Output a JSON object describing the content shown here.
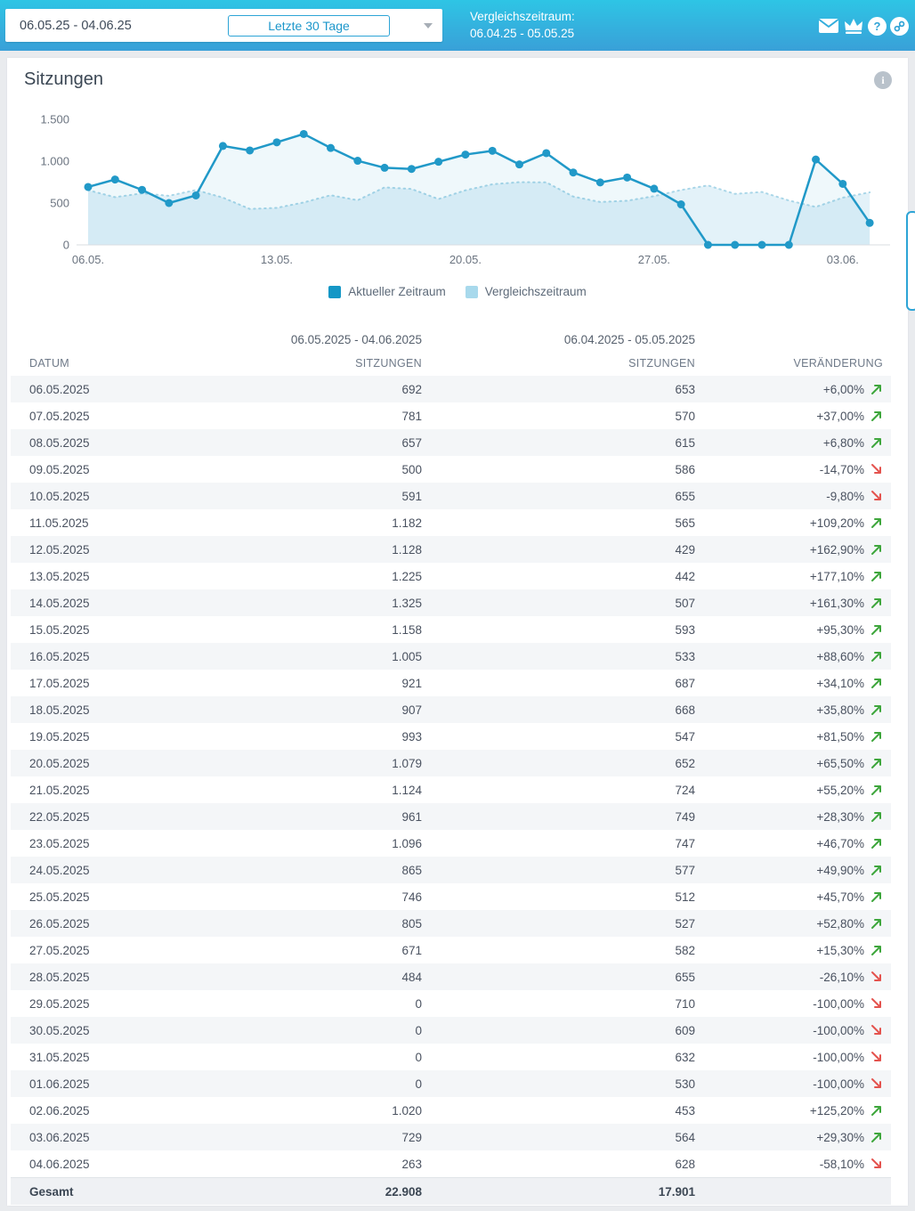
{
  "header": {
    "date_range": "06.05.25 - 04.06.25",
    "range_preset": "Letzte 30 Tage",
    "comparison_label": "Vergleichszeitraum:",
    "comparison_range": "06.04.25 - 05.05.25",
    "help_glyph": "?",
    "icon_names": [
      "mail-icon",
      "crown-icon",
      "help-icon",
      "link-icon"
    ]
  },
  "panel": {
    "title": "Sitzungen",
    "info_icon_glyph": "i"
  },
  "chart_data": {
    "type": "line",
    "title": "Sitzungen",
    "categories": [
      "06.05.2025",
      "07.05.2025",
      "08.05.2025",
      "09.05.2025",
      "10.05.2025",
      "11.05.2025",
      "12.05.2025",
      "13.05.2025",
      "14.05.2025",
      "15.05.2025",
      "16.05.2025",
      "17.05.2025",
      "18.05.2025",
      "19.05.2025",
      "20.05.2025",
      "21.05.2025",
      "22.05.2025",
      "23.05.2025",
      "24.05.2025",
      "25.05.2025",
      "26.05.2025",
      "27.05.2025",
      "28.05.2025",
      "29.05.2025",
      "30.05.2025",
      "31.05.2025",
      "01.06.2025",
      "02.06.2025",
      "03.06.2025",
      "04.06.2025"
    ],
    "series": [
      {
        "name": "Aktueller Zeitraum",
        "style": "solid",
        "color": "#2199c8",
        "values": [
          692,
          781,
          657,
          500,
          591,
          1182,
          1128,
          1225,
          1325,
          1158,
          1005,
          921,
          907,
          993,
          1079,
          1124,
          961,
          1096,
          865,
          746,
          805,
          671,
          484,
          0,
          0,
          0,
          0,
          1020,
          729,
          263
        ]
      },
      {
        "name": "Vergleichszeitraum",
        "style": "dotted",
        "color": "#a9d6e8",
        "values": [
          653,
          570,
          615,
          586,
          655,
          565,
          429,
          442,
          507,
          593,
          533,
          687,
          668,
          547,
          652,
          724,
          749,
          747,
          577,
          512,
          527,
          582,
          655,
          710,
          609,
          632,
          530,
          453,
          564,
          628
        ]
      }
    ],
    "ylim": [
      0,
      1500
    ],
    "y_ticks": [
      {
        "value": 0,
        "label": "0"
      },
      {
        "value": 500,
        "label": "500"
      },
      {
        "value": 1000,
        "label": "1.000"
      },
      {
        "value": 1500,
        "label": "1.500"
      }
    ],
    "x_ticks": [
      {
        "index": 0,
        "label": "06.05."
      },
      {
        "index": 7,
        "label": "13.05."
      },
      {
        "index": 14,
        "label": "20.05."
      },
      {
        "index": 21,
        "label": "27.05."
      },
      {
        "index": 28,
        "label": "03.06."
      }
    ],
    "grid": false,
    "legend_position": "bottom",
    "legend": [
      {
        "label": "Aktueller Zeitraum",
        "color": "#1597c6"
      },
      {
        "label": "Vergleichszeitraum",
        "color": "#a8d9ec"
      }
    ]
  },
  "table": {
    "period_headers": [
      "06.05.2025 - 04.06.2025",
      "06.04.2025 - 05.05.2025"
    ],
    "columns": [
      "DATUM",
      "SITZUNGEN",
      "SITZUNGEN",
      "VERÄNDERUNG"
    ],
    "rows": [
      {
        "date": "06.05.2025",
        "current": "692",
        "comparison": "653",
        "change": "+6,00%",
        "trend": "up"
      },
      {
        "date": "07.05.2025",
        "current": "781",
        "comparison": "570",
        "change": "+37,00%",
        "trend": "up"
      },
      {
        "date": "08.05.2025",
        "current": "657",
        "comparison": "615",
        "change": "+6,80%",
        "trend": "up"
      },
      {
        "date": "09.05.2025",
        "current": "500",
        "comparison": "586",
        "change": "-14,70%",
        "trend": "down"
      },
      {
        "date": "10.05.2025",
        "current": "591",
        "comparison": "655",
        "change": "-9,80%",
        "trend": "down"
      },
      {
        "date": "11.05.2025",
        "current": "1.182",
        "comparison": "565",
        "change": "+109,20%",
        "trend": "up"
      },
      {
        "date": "12.05.2025",
        "current": "1.128",
        "comparison": "429",
        "change": "+162,90%",
        "trend": "up"
      },
      {
        "date": "13.05.2025",
        "current": "1.225",
        "comparison": "442",
        "change": "+177,10%",
        "trend": "up"
      },
      {
        "date": "14.05.2025",
        "current": "1.325",
        "comparison": "507",
        "change": "+161,30%",
        "trend": "up"
      },
      {
        "date": "15.05.2025",
        "current": "1.158",
        "comparison": "593",
        "change": "+95,30%",
        "trend": "up"
      },
      {
        "date": "16.05.2025",
        "current": "1.005",
        "comparison": "533",
        "change": "+88,60%",
        "trend": "up"
      },
      {
        "date": "17.05.2025",
        "current": "921",
        "comparison": "687",
        "change": "+34,10%",
        "trend": "up"
      },
      {
        "date": "18.05.2025",
        "current": "907",
        "comparison": "668",
        "change": "+35,80%",
        "trend": "up"
      },
      {
        "date": "19.05.2025",
        "current": "993",
        "comparison": "547",
        "change": "+81,50%",
        "trend": "up"
      },
      {
        "date": "20.05.2025",
        "current": "1.079",
        "comparison": "652",
        "change": "+65,50%",
        "trend": "up"
      },
      {
        "date": "21.05.2025",
        "current": "1.124",
        "comparison": "724",
        "change": "+55,20%",
        "trend": "up"
      },
      {
        "date": "22.05.2025",
        "current": "961",
        "comparison": "749",
        "change": "+28,30%",
        "trend": "up"
      },
      {
        "date": "23.05.2025",
        "current": "1.096",
        "comparison": "747",
        "change": "+46,70%",
        "trend": "up"
      },
      {
        "date": "24.05.2025",
        "current": "865",
        "comparison": "577",
        "change": "+49,90%",
        "trend": "up"
      },
      {
        "date": "25.05.2025",
        "current": "746",
        "comparison": "512",
        "change": "+45,70%",
        "trend": "up"
      },
      {
        "date": "26.05.2025",
        "current": "805",
        "comparison": "527",
        "change": "+52,80%",
        "trend": "up"
      },
      {
        "date": "27.05.2025",
        "current": "671",
        "comparison": "582",
        "change": "+15,30%",
        "trend": "up"
      },
      {
        "date": "28.05.2025",
        "current": "484",
        "comparison": "655",
        "change": "-26,10%",
        "trend": "down"
      },
      {
        "date": "29.05.2025",
        "current": "0",
        "comparison": "710",
        "change": "-100,00%",
        "trend": "down"
      },
      {
        "date": "30.05.2025",
        "current": "0",
        "comparison": "609",
        "change": "-100,00%",
        "trend": "down"
      },
      {
        "date": "31.05.2025",
        "current": "0",
        "comparison": "632",
        "change": "-100,00%",
        "trend": "down"
      },
      {
        "date": "01.06.2025",
        "current": "0",
        "comparison": "530",
        "change": "-100,00%",
        "trend": "down"
      },
      {
        "date": "02.06.2025",
        "current": "1.020",
        "comparison": "453",
        "change": "+125,20%",
        "trend": "up"
      },
      {
        "date": "03.06.2025",
        "current": "729",
        "comparison": "564",
        "change": "+29,30%",
        "trend": "up"
      },
      {
        "date": "04.06.2025",
        "current": "263",
        "comparison": "628",
        "change": "-58,10%",
        "trend": "down"
      }
    ],
    "total": {
      "label": "Gesamt",
      "current": "22.908",
      "comparison": "17.901"
    }
  },
  "colors": {
    "topbar_gradient_top": "#2ec5e5",
    "topbar_gradient_bottom": "#39a0d8",
    "accent_blue": "#2199c8",
    "comparison_blue": "#a9d6e8",
    "positive_green": "#3ea63c",
    "negative_red": "#e4534e",
    "row_stripe": "#f4f6f8"
  }
}
